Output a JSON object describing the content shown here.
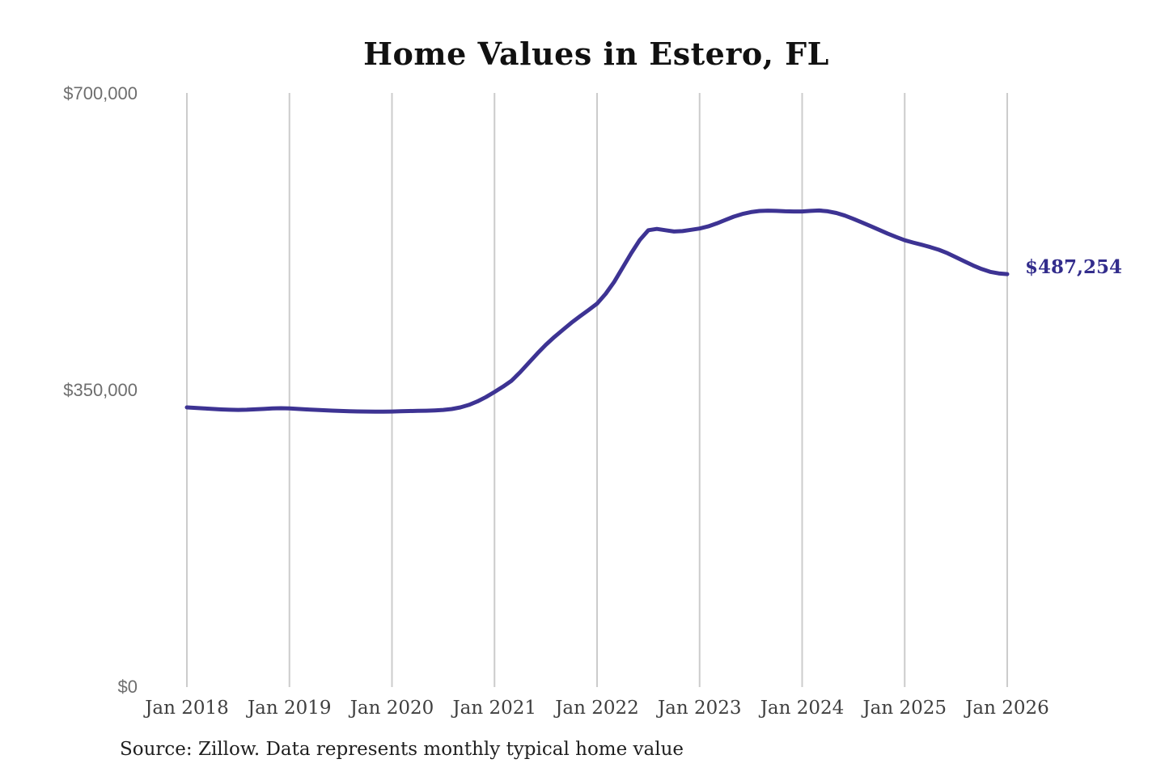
{
  "title": "Home Values in Estero, FL",
  "source_note": "Source: Zillow. Data represents monthly typical home value",
  "colors": {
    "line": "#3d3393",
    "end_label": "#332d8c",
    "grid": "#cccccc",
    "title": "#111111",
    "x_tick": "#3f3f3f",
    "y_tick": "#6e6e6e",
    "source": "#1f1f1f",
    "background": "#ffffff"
  },
  "chart_data": {
    "type": "line",
    "title": "Home Values in Estero, FL",
    "xlabel": "",
    "ylabel": "",
    "ylim": [
      0,
      700000
    ],
    "grid": "vertical-only",
    "legend": "none",
    "x_ticks": [
      "Jan 2018",
      "Jan 2019",
      "Jan 2020",
      "Jan 2021",
      "Jan 2022",
      "Jan 2023",
      "Jan 2024",
      "Jan 2025",
      "Jan 2026"
    ],
    "y_ticks": [
      {
        "label": "$700,000",
        "value": 700000
      },
      {
        "label": "$350,000",
        "value": 350000
      },
      {
        "label": "$0",
        "value": 0
      }
    ],
    "last_point_label": "$487,254",
    "last_value": 487254,
    "series": [
      {
        "name": "Monthly typical home value",
        "start": "2018-01",
        "end": "2026-01",
        "interval": "monthly",
        "values": [
          330000,
          329400,
          328800,
          328200,
          327600,
          327200,
          327000,
          327200,
          327700,
          328200,
          328700,
          329000,
          328700,
          328200,
          327600,
          327100,
          326600,
          326200,
          325800,
          325500,
          325200,
          325100,
          325000,
          325000,
          325100,
          325400,
          325700,
          325900,
          326100,
          326400,
          327000,
          328100,
          330000,
          332900,
          337000,
          342200,
          348200,
          354500,
          361500,
          371500,
          382500,
          393500,
          403800,
          413000,
          421500,
          429800,
          437500,
          444800,
          452400,
          464000,
          478000,
          495000,
          512000,
          527500,
          539000,
          540500,
          539000,
          537500,
          538000,
          539500,
          541000,
          543500,
          547000,
          551000,
          555000,
          558200,
          560400,
          561700,
          562100,
          561800,
          561300,
          561100,
          561100,
          561800,
          562300,
          561300,
          559300,
          556300,
          552400,
          548200,
          543900,
          539500,
          535100,
          531000,
          527200,
          524400,
          521900,
          519100,
          515900,
          511900,
          507100,
          502200,
          497400,
          493200,
          489900,
          488100,
          487254
        ]
      }
    ]
  }
}
